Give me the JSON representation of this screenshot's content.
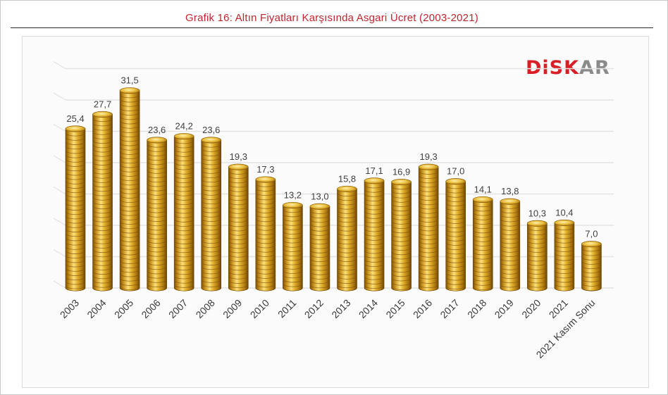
{
  "title": "Grafik 16: Altın Fiyatları Karşısında Asgari Ücret (2003-2021)",
  "logo": {
    "red_part": "DiSK",
    "gray_part": "AR",
    "red": "#d71f26",
    "gray": "#8a8a8a"
  },
  "colors": {
    "title": "#c0262d",
    "coin_light": "#f6d265",
    "coin_mid": "#d9a521",
    "coin_dark": "#8a5c08",
    "grid": "#e3e3e3"
  },
  "chart_data": {
    "type": "bar",
    "categories": [
      "2003",
      "2004",
      "2005",
      "2006",
      "2007",
      "2008",
      "2009",
      "2010",
      "2011",
      "2012",
      "2013",
      "2014",
      "2015",
      "2016",
      "2017",
      "2018",
      "2019",
      "2020",
      "2021",
      "2021 Kasım Sonu"
    ],
    "values": [
      25.4,
      27.7,
      31.5,
      23.6,
      24.2,
      23.6,
      19.3,
      17.3,
      13.2,
      13.0,
      15.8,
      17.1,
      16.9,
      19.3,
      17.0,
      14.1,
      13.8,
      10.3,
      10.4,
      7.0
    ],
    "value_labels": [
      "25,4",
      "27,7",
      "31,5",
      "23,6",
      "24,2",
      "23,6",
      "19,3",
      "17,3",
      "13,2",
      "13,0",
      "15,8",
      "17,1",
      "16,9",
      "19,3",
      "17,0",
      "14,1",
      "13,8",
      "10,3",
      "10,4",
      "7,0"
    ],
    "ylim": [
      0,
      35
    ],
    "grid": true,
    "xlabel": "",
    "ylabel": ""
  }
}
